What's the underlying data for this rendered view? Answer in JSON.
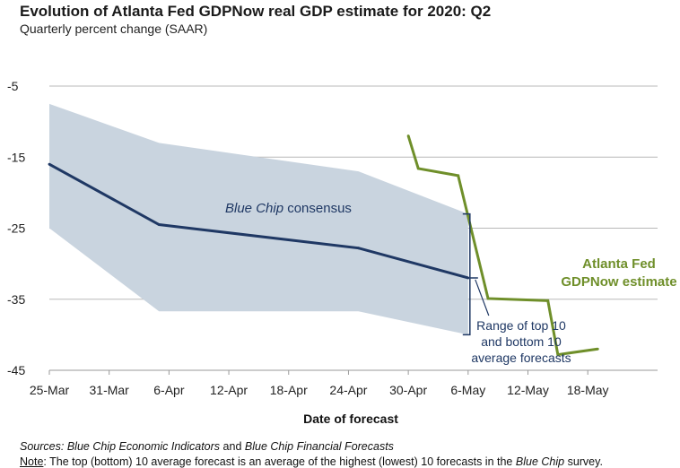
{
  "title": "Evolution of Atlanta Fed GDPNow real GDP estimate for 2020: Q2",
  "subtitle": "Quarterly percent change (SAAR)",
  "chart_data": {
    "type": "line",
    "xlabel": "Date of forecast",
    "ylabel": "",
    "x_categories": [
      "25-Mar",
      "31-Mar",
      "6-Apr",
      "12-Apr",
      "18-Apr",
      "24-Apr",
      "30-Apr",
      "6-May",
      "12-May",
      "18-May"
    ],
    "yticks": [
      -5,
      -15,
      -25,
      -35,
      -45
    ],
    "ylim": [
      -45,
      -5
    ],
    "grid": "horizontal",
    "x_values_are_days_from": "25-Mar",
    "series": [
      {
        "name": "Blue Chip consensus",
        "style": "line",
        "color": "#1f3864",
        "x": [
          "25-Mar",
          "5-Apr",
          "25-Apr",
          "6-May"
        ],
        "values": [
          -16.0,
          -24.5,
          -27.8,
          -32.0
        ]
      },
      {
        "name": "Range of top 10 and bottom 10 average forecasts",
        "style": "band",
        "color": "#c9d4df",
        "x": [
          "25-Mar",
          "5-Apr",
          "25-Apr",
          "6-May"
        ],
        "upper": [
          -7.5,
          -13.0,
          -17.0,
          -23.0
        ],
        "lower": [
          -25.0,
          -36.7,
          -36.7,
          -40.0
        ]
      },
      {
        "name": "Atlanta Fed GDPNow estimate",
        "style": "line",
        "color": "#6f8f2a",
        "x": [
          "30-Apr",
          "1-May",
          "5-May",
          "8-May",
          "14-May",
          "15-May",
          "19-May"
        ],
        "values": [
          -12.0,
          -16.6,
          -17.6,
          -34.9,
          -35.2,
          -42.8,
          -42.0
        ]
      }
    ],
    "annotations": {
      "consensus_label_prefix": "Blue Chip",
      "consensus_label_suffix": "consensus",
      "range_label": [
        "Range of top 10",
        "and bottom 10",
        "average forecasts"
      ],
      "gdpnow_label": [
        "Atlanta Fed",
        "GDPNow estimate"
      ]
    }
  },
  "footer": {
    "sources_label": "Sources:",
    "sources_pub1": "Blue Chip Economic Indicators",
    "sources_and": "and",
    "sources_pub2": "Blue Chip Financial Forecasts",
    "note_label": "Note",
    "note_text_before": ": The top (bottom) 10 average forecast is an average of the highest (lowest) 10 forecasts in the",
    "note_pub": "Blue Chip",
    "note_text_after": "survey."
  }
}
